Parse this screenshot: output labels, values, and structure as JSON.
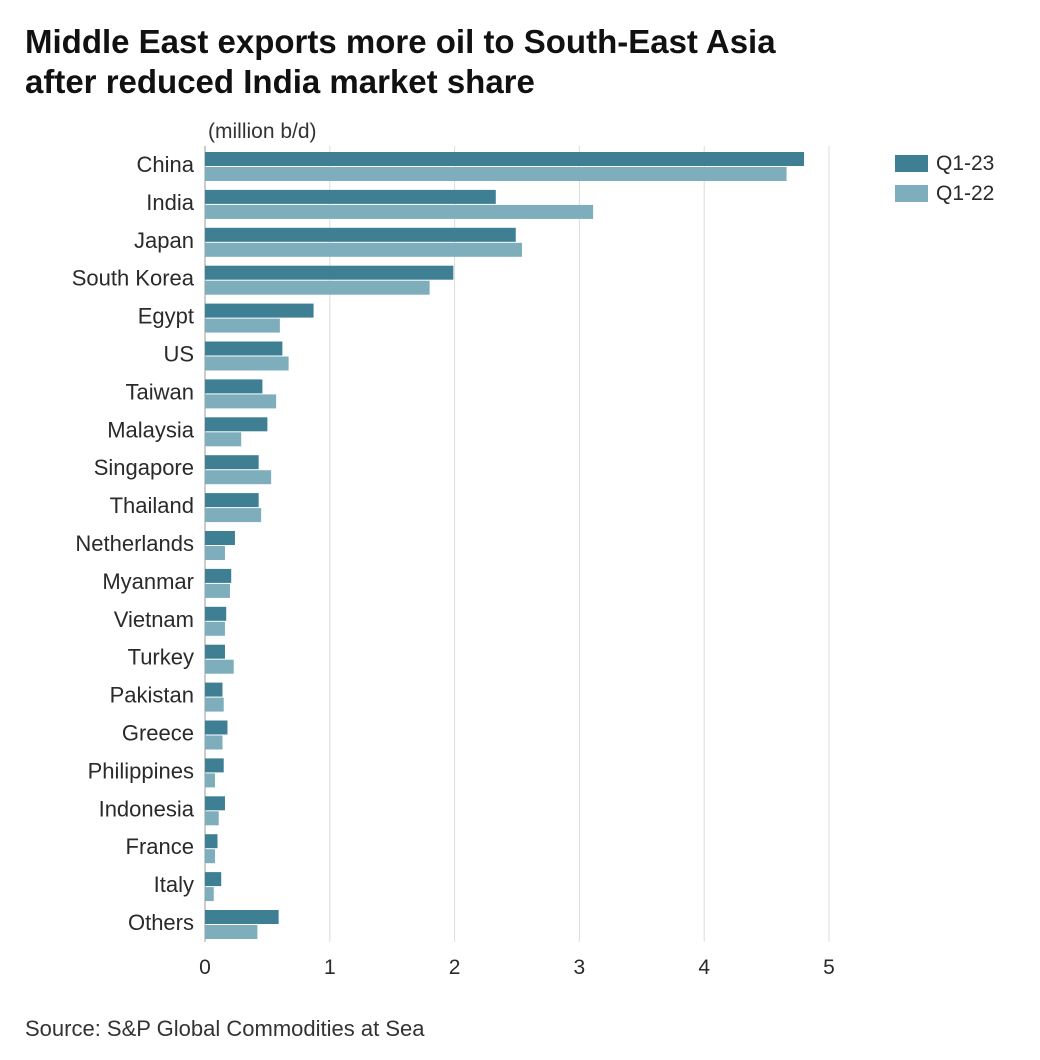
{
  "title_line1": "Middle East exports more oil to South-East Asia",
  "title_line2": "after reduced India market share",
  "source": "Source: S&P Global Commodities at Sea",
  "chart_data": {
    "type": "bar",
    "orientation": "horizontal",
    "title": "Middle East exports more oil to South-East Asia after reduced India market share",
    "unit_label": "(million b/d)",
    "categories": [
      "China",
      "India",
      "Japan",
      "South Korea",
      "Egypt",
      "US",
      "Taiwan",
      "Malaysia",
      "Singapore",
      "Thailand",
      "Netherlands",
      "Myanmar",
      "Vietnam",
      "Turkey",
      "Pakistan",
      "Greece",
      "Philippines",
      "Indonesia",
      "France",
      "Italy",
      "Others"
    ],
    "series": [
      {
        "name": "Q1-23",
        "color": "#3f7f94",
        "values": [
          4.8,
          2.33,
          2.49,
          1.99,
          0.87,
          0.62,
          0.46,
          0.5,
          0.43,
          0.43,
          0.24,
          0.21,
          0.17,
          0.16,
          0.14,
          0.18,
          0.15,
          0.16,
          0.1,
          0.13,
          0.59
        ]
      },
      {
        "name": "Q1-22",
        "color": "#7eaebc",
        "values": [
          4.66,
          3.11,
          2.54,
          1.8,
          0.6,
          0.67,
          0.57,
          0.29,
          0.53,
          0.45,
          0.16,
          0.2,
          0.16,
          0.23,
          0.15,
          0.14,
          0.08,
          0.11,
          0.08,
          0.07,
          0.42
        ]
      }
    ],
    "xlim": [
      0,
      5
    ],
    "xticks": [
      "0",
      "1",
      "2",
      "3",
      "4",
      "5"
    ],
    "grid": "vertical",
    "legend": "top-right"
  }
}
